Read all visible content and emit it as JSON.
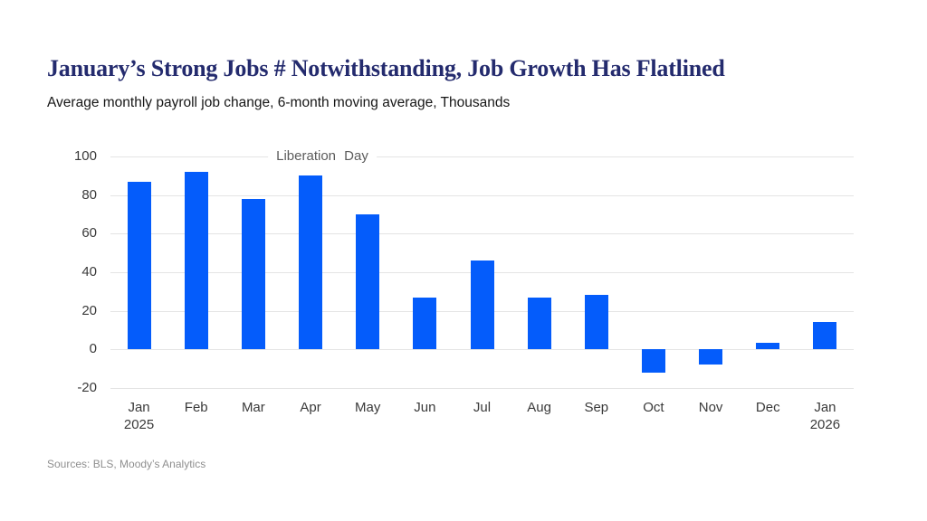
{
  "header": {
    "title": "January’s Strong Jobs # Notwithstanding, Job Growth Has Flatlined",
    "subtitle": "Average monthly payroll job change, 6-month moving average, Thousands",
    "title_color": "#242b6e"
  },
  "chart_data": {
    "type": "bar",
    "title": "January’s Strong Jobs # Notwithstanding, Job Growth Has Flatlined",
    "subtitle": "Average monthly payroll job change, 6-month moving average, Thousands",
    "categories": [
      {
        "month": "Jan",
        "year": "2025"
      },
      {
        "month": "Feb",
        "year": ""
      },
      {
        "month": "Mar",
        "year": ""
      },
      {
        "month": "Apr",
        "year": ""
      },
      {
        "month": "May",
        "year": ""
      },
      {
        "month": "Jun",
        "year": ""
      },
      {
        "month": "Jul",
        "year": ""
      },
      {
        "month": "Aug",
        "year": ""
      },
      {
        "month": "Sep",
        "year": ""
      },
      {
        "month": "Oct",
        "year": ""
      },
      {
        "month": "Nov",
        "year": ""
      },
      {
        "month": "Dec",
        "year": ""
      },
      {
        "month": "Jan",
        "year": "2026"
      }
    ],
    "values": [
      87,
      92,
      78,
      90,
      70,
      27,
      46,
      27,
      28.5,
      -12,
      -8,
      3.5,
      14
    ],
    "unit": "Thousands",
    "xlabel": "",
    "ylabel": "",
    "ylim": [
      -20,
      100
    ],
    "yticks": [
      100,
      80,
      60,
      40,
      20,
      0,
      -20
    ],
    "grid": true,
    "legend": "none",
    "bar_color": "#045cfb",
    "grid_color": "#e4e4e4",
    "annotation": {
      "text": "Liberation Day",
      "near_category": "Apr",
      "y": 100
    }
  },
  "footer": {
    "sources": "Sources: BLS, Moody’s Analytics"
  }
}
